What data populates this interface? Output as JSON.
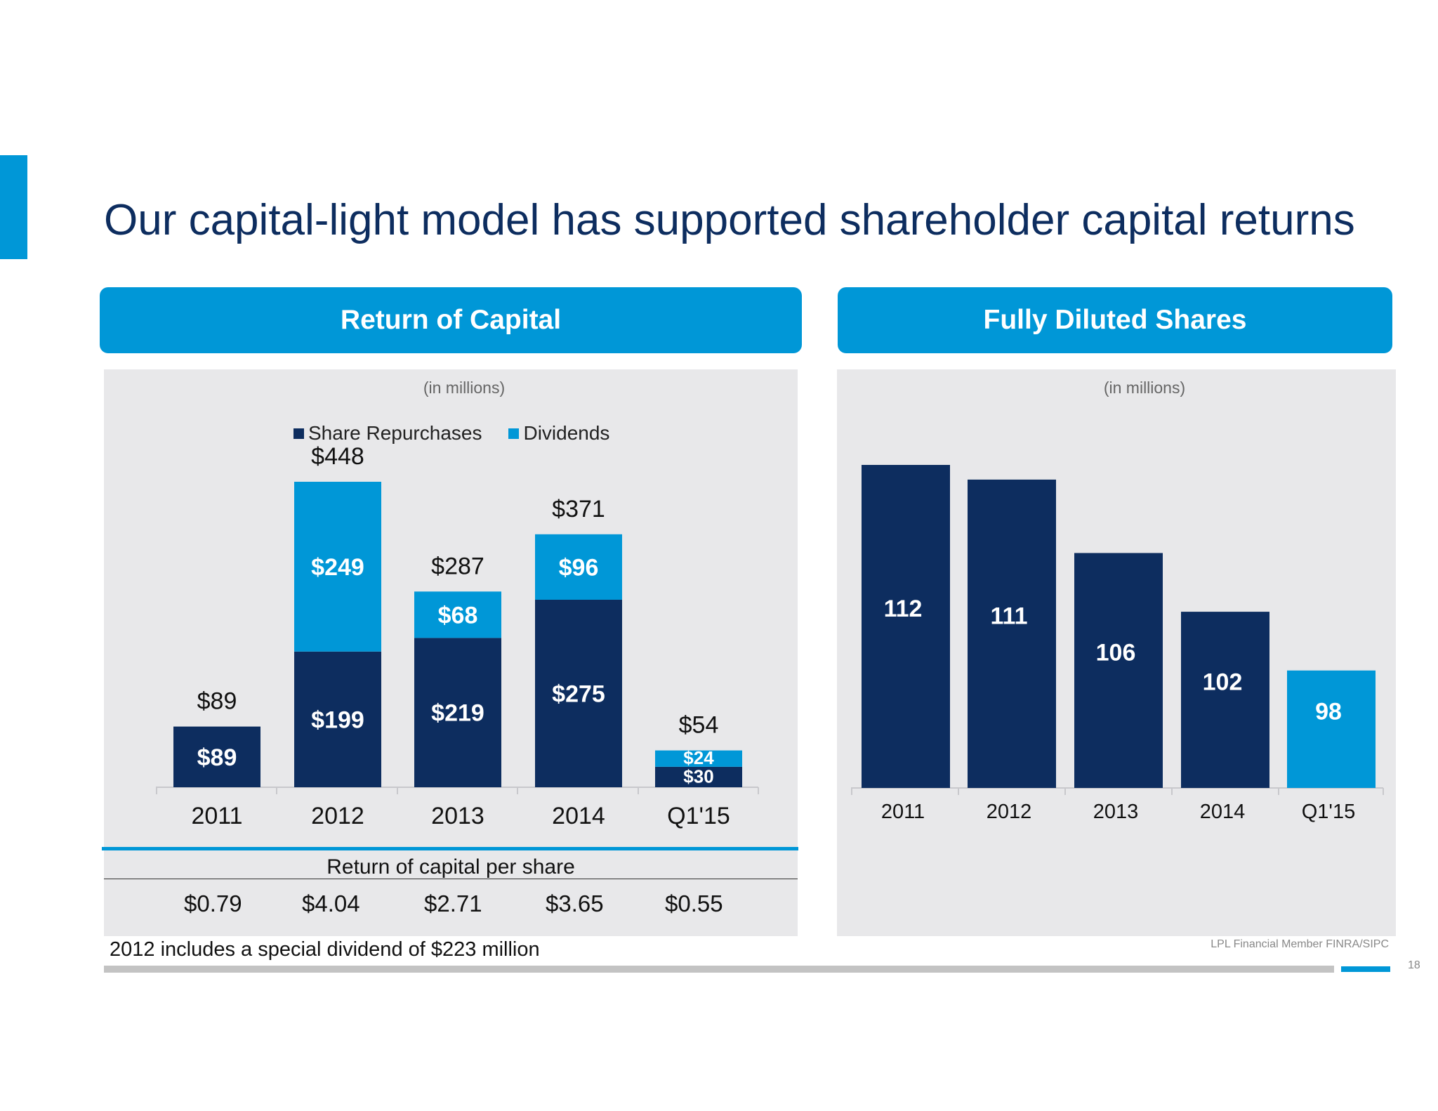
{
  "slide": {
    "title": "Our capital-light model has supported shareholder capital returns",
    "colors": {
      "navy": "#0d2d5f",
      "blue": "#0097d7",
      "title_text": "#0d2d5f"
    }
  },
  "left_panel": {
    "header": "Return of Capital",
    "units": "(in millions)",
    "per_share": {
      "title": "Return of capital per share",
      "values": [
        "$0.79",
        "$4.04",
        "$2.71",
        "$3.65",
        "$0.55"
      ]
    }
  },
  "right_panel": {
    "header": "Fully Diluted Shares",
    "units": "(in millions)"
  },
  "footnote": "2012 includes a special dividend of $223 million",
  "footer": {
    "member": "LPL Financial  Member FINRA/SIPC",
    "page": "18"
  },
  "chart_data": [
    {
      "type": "bar",
      "stacked": true,
      "categories": [
        "2011",
        "2012",
        "2013",
        "2014",
        "Q1'15"
      ],
      "series": [
        {
          "name": "Share Repurchases",
          "color": "#0d2d5f",
          "values": [
            89,
            199,
            219,
            275,
            30
          ],
          "labels": [
            "$89",
            "$199",
            "$219",
            "$275",
            "$30"
          ]
        },
        {
          "name": "Dividends",
          "color": "#0097d7",
          "values": [
            0,
            249,
            68,
            96,
            24
          ],
          "labels": [
            "",
            "$249",
            "$68",
            "$96",
            "$24"
          ]
        }
      ],
      "totals": [
        89,
        448,
        287,
        371,
        54
      ],
      "total_labels": [
        "$89",
        "$448",
        "$287",
        "$371",
        "$54"
      ],
      "legend": "top-center",
      "grid": false,
      "ylim": [
        0,
        448
      ]
    },
    {
      "type": "bar",
      "categories": [
        "2011",
        "2012",
        "2013",
        "2014",
        "Q1'15"
      ],
      "series": [
        {
          "values": [
            112,
            111,
            106,
            102,
            98
          ],
          "labels": [
            "112",
            "111",
            "106",
            "102",
            "98"
          ]
        }
      ],
      "colors": [
        "#0d2d5f",
        "#0d2d5f",
        "#0d2d5f",
        "#0d2d5f",
        "#0097d7"
      ],
      "grid": false
    }
  ]
}
